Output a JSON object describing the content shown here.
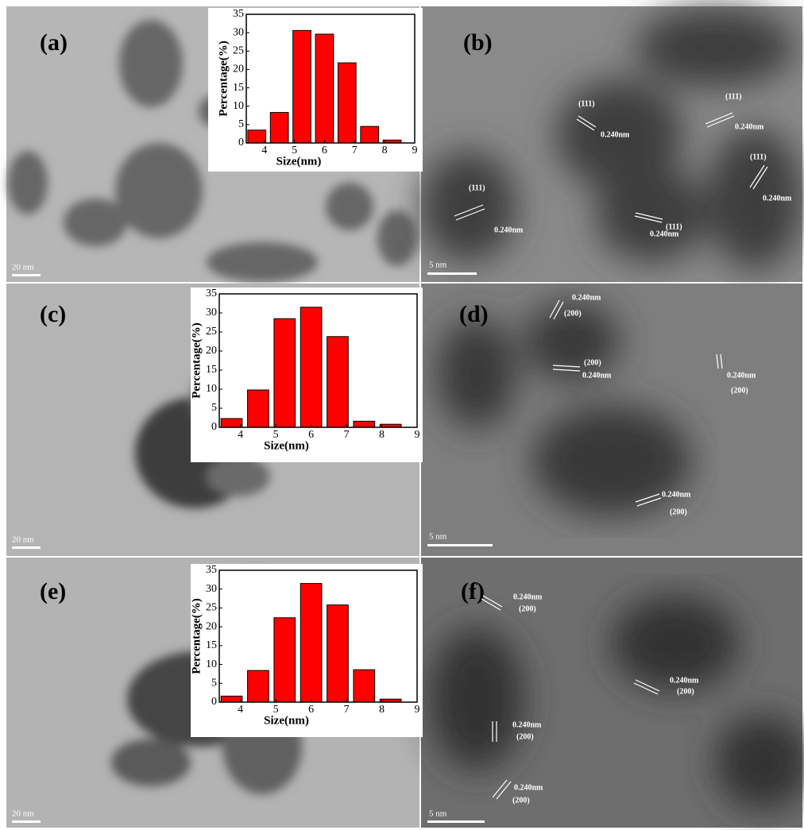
{
  "chart_data": [
    {
      "type": "bar",
      "xlabel": "Size(nm)",
      "ylabel": "Percentage(%)",
      "x": [
        3.75,
        4.5,
        5.25,
        6.0,
        6.75,
        7.5,
        8.25
      ],
      "values": [
        3.5,
        8.3,
        30.6,
        29.6,
        21.8,
        4.5,
        0.8
      ],
      "color": "#ff0000",
      "xlim": [
        3.4,
        9.0
      ],
      "xticks": [
        4,
        5,
        6,
        7,
        8,
        9
      ],
      "ylim": [
        0,
        35
      ],
      "yticks": [
        0,
        5,
        10,
        15,
        20,
        25,
        30,
        35
      ]
    },
    {
      "type": "bar",
      "xlabel": "Size(nm)",
      "ylabel": "Percentage(%)",
      "x": [
        3.75,
        4.5,
        5.25,
        6.0,
        6.75,
        7.5,
        8.25
      ],
      "values": [
        2.3,
        9.8,
        28.5,
        31.5,
        23.8,
        1.6,
        0.8
      ],
      "color": "#ff0000",
      "xlim": [
        3.4,
        9.0
      ],
      "xticks": [
        4,
        5,
        6,
        7,
        8,
        9
      ],
      "ylim": [
        0,
        35
      ],
      "yticks": [
        0,
        5,
        10,
        15,
        20,
        25,
        30,
        35
      ]
    },
    {
      "type": "bar",
      "xlabel": "Size(nm)",
      "ylabel": "Percentage(%)",
      "x": [
        3.75,
        4.5,
        5.25,
        6.0,
        6.75,
        7.5,
        8.25
      ],
      "values": [
        1.6,
        8.4,
        22.4,
        31.5,
        25.8,
        8.6,
        0.8
      ],
      "color": "#ff0000",
      "xlim": [
        3.4,
        9.0
      ],
      "xticks": [
        4,
        5,
        6,
        7,
        8,
        9
      ],
      "ylim": [
        0,
        35
      ],
      "yticks": [
        0,
        5,
        10,
        15,
        20,
        25,
        30,
        35
      ]
    }
  ],
  "panels": [
    {
      "label": "(a)",
      "scale_bar": "20 nm"
    },
    {
      "label": "(b)",
      "scale_bar": "5 nm",
      "annotations": [
        "(111)",
        "0.240nm",
        "(111)",
        "0.240nm",
        "(111)",
        "0.240nm",
        "(111)",
        "0.240nm",
        "(111)",
        "0.240nm"
      ]
    },
    {
      "label": "(c)",
      "scale_bar": "20 nm"
    },
    {
      "label": "(d)",
      "scale_bar": "5 nm",
      "annotations": [
        "0.240nm",
        "(200)",
        "(200)",
        "0.240nm",
        "0.240nm",
        "(200)",
        "0.240nm",
        "(200)"
      ]
    },
    {
      "label": "(e)",
      "scale_bar": "20 nm"
    },
    {
      "label": "(f)",
      "scale_bar": "5 nm",
      "annotations": [
        "0.240nm",
        "(200)",
        "0.240nm",
        "(200)",
        "0.240nm",
        "(200)",
        "0.240nm",
        "(200)"
      ]
    }
  ]
}
